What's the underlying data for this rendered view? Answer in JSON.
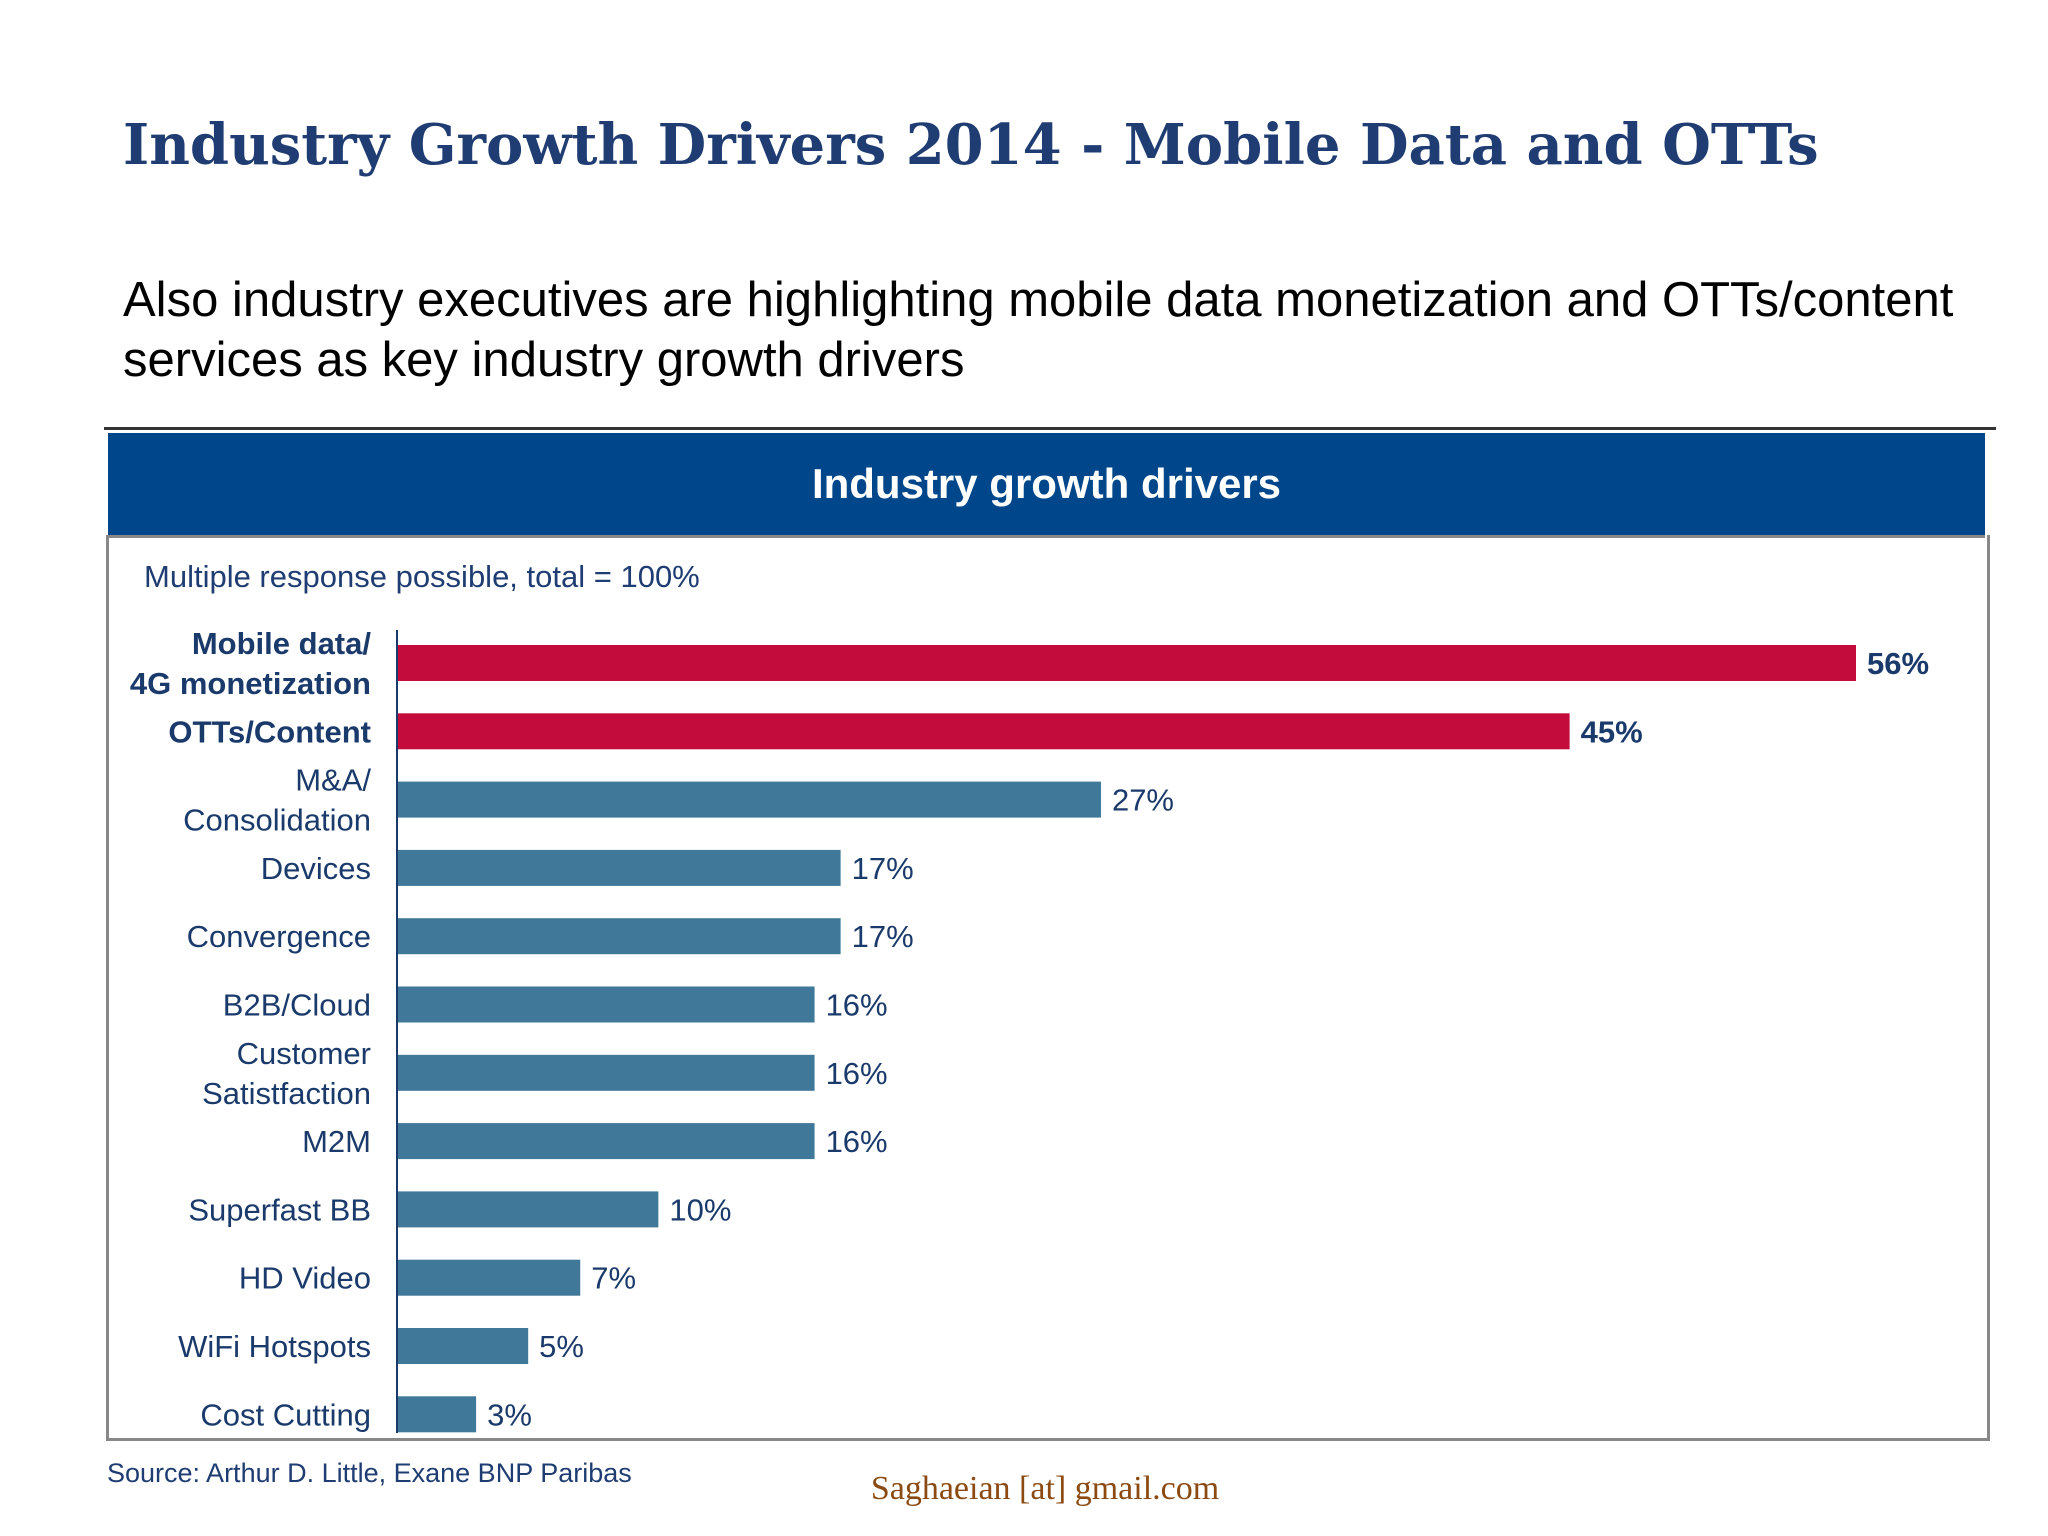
{
  "slide": {
    "title": "Industry Growth Drivers 2014 - Mobile Data and OTTs",
    "subtitle": "Also industry executives are highlighting mobile data monetization and OTTs/content services as key industry growth drivers",
    "source": "Source: Arthur D. Little, Exane BNP Paribas",
    "email": "Saghaeian [at] gmail.com"
  },
  "chart_data": {
    "type": "bar",
    "orientation": "horizontal",
    "title": "Industry growth drivers",
    "subtitle": "Multiple response possible, total = 100%",
    "categories": [
      [
        "Mobile data/",
        "4G monetization"
      ],
      [
        "OTTs/Content"
      ],
      [
        "M&A/",
        "Consolidation"
      ],
      [
        "Devices"
      ],
      [
        "Convergence"
      ],
      [
        "B2B/Cloud"
      ],
      [
        "Customer",
        "Satistfaction"
      ],
      [
        "M2M"
      ],
      [
        "Superfast BB"
      ],
      [
        "HD Video"
      ],
      [
        "WiFi Hotspots"
      ],
      [
        "Cost Cutting"
      ]
    ],
    "values": [
      56,
      45,
      27,
      17,
      17,
      16,
      16,
      16,
      10,
      7,
      5,
      3
    ],
    "value_labels": [
      "56%",
      "45%",
      "27%",
      "17%",
      "17%",
      "16%",
      "16%",
      "16%",
      "10%",
      "7%",
      "5%",
      "3%"
    ],
    "highlighted": [
      true,
      true,
      false,
      false,
      false,
      false,
      false,
      false,
      false,
      false,
      false,
      false
    ],
    "colors": {
      "highlight": "#c40c3c",
      "normal": "#3f7899",
      "label": "#1a3a6b",
      "header": "#00468b"
    },
    "xlim": [
      0,
      56
    ],
    "grid": false,
    "legend": "none"
  }
}
